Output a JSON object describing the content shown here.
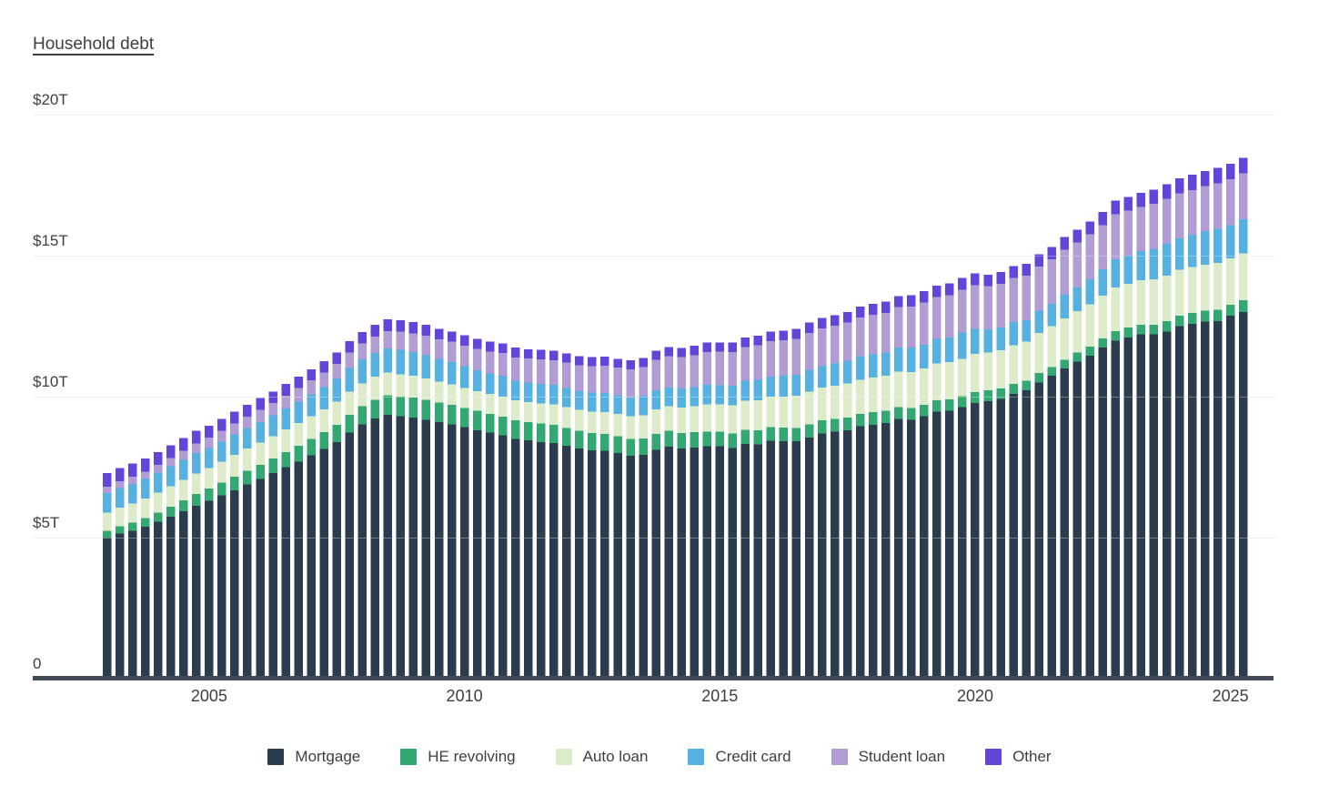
{
  "title": "Household debt",
  "y_axis": {
    "labels": [
      "$20T",
      "$15T",
      "$10T",
      "$5T",
      "0"
    ],
    "values": [
      20,
      15,
      10,
      5,
      0
    ]
  },
  "x_axis": {
    "ticks": [
      {
        "label": "2005",
        "quarter_index": 8
      },
      {
        "label": "2010",
        "quarter_index": 28
      },
      {
        "label": "2015",
        "quarter_index": 48
      },
      {
        "label": "2020",
        "quarter_index": 68
      },
      {
        "label": "2025",
        "quarter_index": 88
      }
    ]
  },
  "legend": {
    "items": [
      {
        "label": "Mortgage",
        "color": "#2b3c4e"
      },
      {
        "label": "HE revolving",
        "color": "#34a873"
      },
      {
        "label": "Auto loan",
        "color": "#dcecc8"
      },
      {
        "label": "Credit card",
        "color": "#56b1e1"
      },
      {
        "label": "Student loan",
        "color": "#b19dd3"
      },
      {
        "label": "Other",
        "color": "#6245d9"
      }
    ]
  },
  "chart_data": {
    "type": "bar",
    "stacked": true,
    "title": "Household debt",
    "unit": "trillions of USD",
    "ylim": [
      0,
      20
    ],
    "grid": true,
    "legend_position": "bottom",
    "categories": [
      "2003 Q1",
      "2003 Q2",
      "2003 Q3",
      "2003 Q4",
      "2004 Q1",
      "2004 Q2",
      "2004 Q3",
      "2004 Q4",
      "2005 Q1",
      "2005 Q2",
      "2005 Q3",
      "2005 Q4",
      "2006 Q1",
      "2006 Q2",
      "2006 Q3",
      "2006 Q4",
      "2007 Q1",
      "2007 Q2",
      "2007 Q3",
      "2007 Q4",
      "2008 Q1",
      "2008 Q2",
      "2008 Q3",
      "2008 Q4",
      "2009 Q1",
      "2009 Q2",
      "2009 Q3",
      "2009 Q4",
      "2010 Q1",
      "2010 Q2",
      "2010 Q3",
      "2010 Q4",
      "2011 Q1",
      "2011 Q2",
      "2011 Q3",
      "2011 Q4",
      "2012 Q1",
      "2012 Q2",
      "2012 Q3",
      "2012 Q4",
      "2013 Q1",
      "2013 Q2",
      "2013 Q3",
      "2013 Q4",
      "2014 Q1",
      "2014 Q2",
      "2014 Q3",
      "2014 Q4",
      "2015 Q1",
      "2015 Q2",
      "2015 Q3",
      "2015 Q4",
      "2016 Q1",
      "2016 Q2",
      "2016 Q3",
      "2016 Q4",
      "2017 Q1",
      "2017 Q2",
      "2017 Q3",
      "2017 Q4",
      "2018 Q1",
      "2018 Q2",
      "2018 Q3",
      "2018 Q4",
      "2019 Q1",
      "2019 Q2",
      "2019 Q3",
      "2019 Q4",
      "2020 Q1",
      "2020 Q2",
      "2020 Q3",
      "2020 Q4",
      "2021 Q1",
      "2021 Q2",
      "2021 Q3",
      "2021 Q4",
      "2022 Q1",
      "2022 Q2",
      "2022 Q3",
      "2022 Q4",
      "2023 Q1",
      "2023 Q2",
      "2023 Q3",
      "2023 Q4",
      "2024 Q1",
      "2024 Q2",
      "2024 Q3",
      "2024 Q4",
      "2025 Q1",
      "2025 Q2"
    ],
    "series": [
      {
        "name": "Mortgage",
        "color": "#2b3c4e",
        "values": [
          4.94,
          5.08,
          5.18,
          5.33,
          5.5,
          5.68,
          5.87,
          6.06,
          6.24,
          6.43,
          6.62,
          6.82,
          7.02,
          7.22,
          7.43,
          7.63,
          7.85,
          8.08,
          8.33,
          8.66,
          8.95,
          9.16,
          9.29,
          9.24,
          9.2,
          9.12,
          9.03,
          8.95,
          8.85,
          8.75,
          8.66,
          8.56,
          8.44,
          8.38,
          8.33,
          8.29,
          8.19,
          8.1,
          8.03,
          8.01,
          7.93,
          7.84,
          7.87,
          8.05,
          8.16,
          8.1,
          8.13,
          8.17,
          8.17,
          8.12,
          8.26,
          8.25,
          8.37,
          8.36,
          8.35,
          8.48,
          8.63,
          8.69,
          8.74,
          8.88,
          8.94,
          9.0,
          9.14,
          9.12,
          9.24,
          9.41,
          9.44,
          9.56,
          9.71,
          9.78,
          9.86,
          10.04,
          10.16,
          10.44,
          10.67,
          10.93,
          11.18,
          11.39,
          11.67,
          11.92,
          12.04,
          12.14,
          12.14,
          12.25,
          12.44,
          12.52,
          12.59,
          12.61,
          12.8,
          12.94
        ]
      },
      {
        "name": "HE revolving",
        "color": "#34a873",
        "values": [
          0.24,
          0.26,
          0.28,
          0.3,
          0.33,
          0.36,
          0.39,
          0.42,
          0.44,
          0.46,
          0.48,
          0.49,
          0.5,
          0.52,
          0.54,
          0.56,
          0.58,
          0.6,
          0.61,
          0.63,
          0.64,
          0.66,
          0.69,
          0.7,
          0.71,
          0.71,
          0.7,
          0.7,
          0.69,
          0.68,
          0.67,
          0.67,
          0.66,
          0.66,
          0.65,
          0.64,
          0.63,
          0.62,
          0.61,
          0.6,
          0.6,
          0.59,
          0.58,
          0.57,
          0.56,
          0.55,
          0.54,
          0.53,
          0.52,
          0.51,
          0.5,
          0.49,
          0.49,
          0.48,
          0.47,
          0.47,
          0.46,
          0.45,
          0.45,
          0.44,
          0.44,
          0.43,
          0.42,
          0.41,
          0.41,
          0.4,
          0.4,
          0.39,
          0.39,
          0.38,
          0.36,
          0.35,
          0.34,
          0.33,
          0.32,
          0.32,
          0.32,
          0.32,
          0.33,
          0.34,
          0.34,
          0.34,
          0.35,
          0.36,
          0.37,
          0.38,
          0.39,
          0.4,
          0.4,
          0.41
        ]
      },
      {
        "name": "Auto loan",
        "color": "#dcecc8",
        "values": [
          0.64,
          0.66,
          0.69,
          0.7,
          0.71,
          0.72,
          0.73,
          0.73,
          0.73,
          0.74,
          0.77,
          0.78,
          0.78,
          0.79,
          0.8,
          0.81,
          0.81,
          0.81,
          0.82,
          0.82,
          0.82,
          0.82,
          0.81,
          0.79,
          0.77,
          0.75,
          0.73,
          0.72,
          0.71,
          0.7,
          0.7,
          0.71,
          0.71,
          0.71,
          0.72,
          0.73,
          0.74,
          0.75,
          0.77,
          0.78,
          0.79,
          0.81,
          0.83,
          0.86,
          0.88,
          0.9,
          0.93,
          0.96,
          0.97,
          1.0,
          1.03,
          1.06,
          1.07,
          1.1,
          1.14,
          1.16,
          1.17,
          1.19,
          1.21,
          1.22,
          1.23,
          1.24,
          1.27,
          1.27,
          1.28,
          1.3,
          1.32,
          1.33,
          1.35,
          1.34,
          1.36,
          1.37,
          1.38,
          1.42,
          1.44,
          1.46,
          1.47,
          1.5,
          1.52,
          1.55,
          1.56,
          1.58,
          1.6,
          1.61,
          1.62,
          1.63,
          1.64,
          1.66,
          1.64,
          1.66
        ]
      },
      {
        "name": "Credit card",
        "color": "#56b1e1",
        "values": [
          0.69,
          0.69,
          0.69,
          0.7,
          0.7,
          0.7,
          0.71,
          0.72,
          0.71,
          0.71,
          0.72,
          0.73,
          0.73,
          0.74,
          0.74,
          0.76,
          0.77,
          0.79,
          0.81,
          0.84,
          0.85,
          0.85,
          0.86,
          0.87,
          0.84,
          0.83,
          0.81,
          0.79,
          0.76,
          0.74,
          0.73,
          0.73,
          0.69,
          0.69,
          0.69,
          0.7,
          0.68,
          0.67,
          0.67,
          0.68,
          0.66,
          0.66,
          0.67,
          0.68,
          0.66,
          0.67,
          0.68,
          0.7,
          0.68,
          0.7,
          0.71,
          0.73,
          0.71,
          0.73,
          0.75,
          0.78,
          0.76,
          0.78,
          0.81,
          0.83,
          0.82,
          0.83,
          0.84,
          0.87,
          0.85,
          0.87,
          0.88,
          0.93,
          0.89,
          0.82,
          0.81,
          0.82,
          0.77,
          0.79,
          0.8,
          0.86,
          0.84,
          0.89,
          0.93,
          0.99,
          0.99,
          1.03,
          1.08,
          1.13,
          1.12,
          1.14,
          1.17,
          1.21,
          1.18,
          1.21
        ]
      },
      {
        "name": "Student loan",
        "color": "#b19dd3",
        "values": [
          0.24,
          0.25,
          0.25,
          0.25,
          0.28,
          0.3,
          0.32,
          0.35,
          0.36,
          0.38,
          0.39,
          0.41,
          0.43,
          0.44,
          0.46,
          0.48,
          0.5,
          0.51,
          0.53,
          0.55,
          0.56,
          0.58,
          0.61,
          0.64,
          0.66,
          0.68,
          0.69,
          0.72,
          0.74,
          0.76,
          0.78,
          0.81,
          0.83,
          0.85,
          0.87,
          0.87,
          0.9,
          0.91,
          0.94,
          0.97,
          0.99,
          1.01,
          1.03,
          1.08,
          1.11,
          1.12,
          1.13,
          1.16,
          1.19,
          1.19,
          1.2,
          1.23,
          1.26,
          1.26,
          1.28,
          1.31,
          1.34,
          1.34,
          1.36,
          1.38,
          1.41,
          1.41,
          1.44,
          1.46,
          1.49,
          1.48,
          1.5,
          1.51,
          1.54,
          1.54,
          1.55,
          1.56,
          1.58,
          1.57,
          1.58,
          1.58,
          1.59,
          1.59,
          1.57,
          1.6,
          1.6,
          1.57,
          1.6,
          1.6,
          1.6,
          1.59,
          1.61,
          1.62,
          1.63,
          1.64
        ]
      },
      {
        "name": "Other",
        "color": "#6245d9",
        "values": [
          0.48,
          0.47,
          0.47,
          0.46,
          0.45,
          0.45,
          0.44,
          0.44,
          0.43,
          0.43,
          0.42,
          0.42,
          0.42,
          0.41,
          0.41,
          0.4,
          0.4,
          0.4,
          0.4,
          0.41,
          0.41,
          0.41,
          0.41,
          0.41,
          0.4,
          0.39,
          0.38,
          0.37,
          0.36,
          0.35,
          0.35,
          0.34,
          0.34,
          0.33,
          0.33,
          0.33,
          0.32,
          0.32,
          0.32,
          0.32,
          0.31,
          0.32,
          0.32,
          0.32,
          0.32,
          0.32,
          0.33,
          0.33,
          0.33,
          0.33,
          0.34,
          0.34,
          0.34,
          0.35,
          0.35,
          0.36,
          0.36,
          0.37,
          0.37,
          0.38,
          0.38,
          0.39,
          0.39,
          0.4,
          0.4,
          0.41,
          0.41,
          0.42,
          0.42,
          0.4,
          0.41,
          0.42,
          0.42,
          0.43,
          0.44,
          0.44,
          0.45,
          0.46,
          0.47,
          0.48,
          0.49,
          0.5,
          0.51,
          0.52,
          0.53,
          0.54,
          0.54,
          0.55,
          0.54,
          0.54
        ]
      }
    ]
  }
}
